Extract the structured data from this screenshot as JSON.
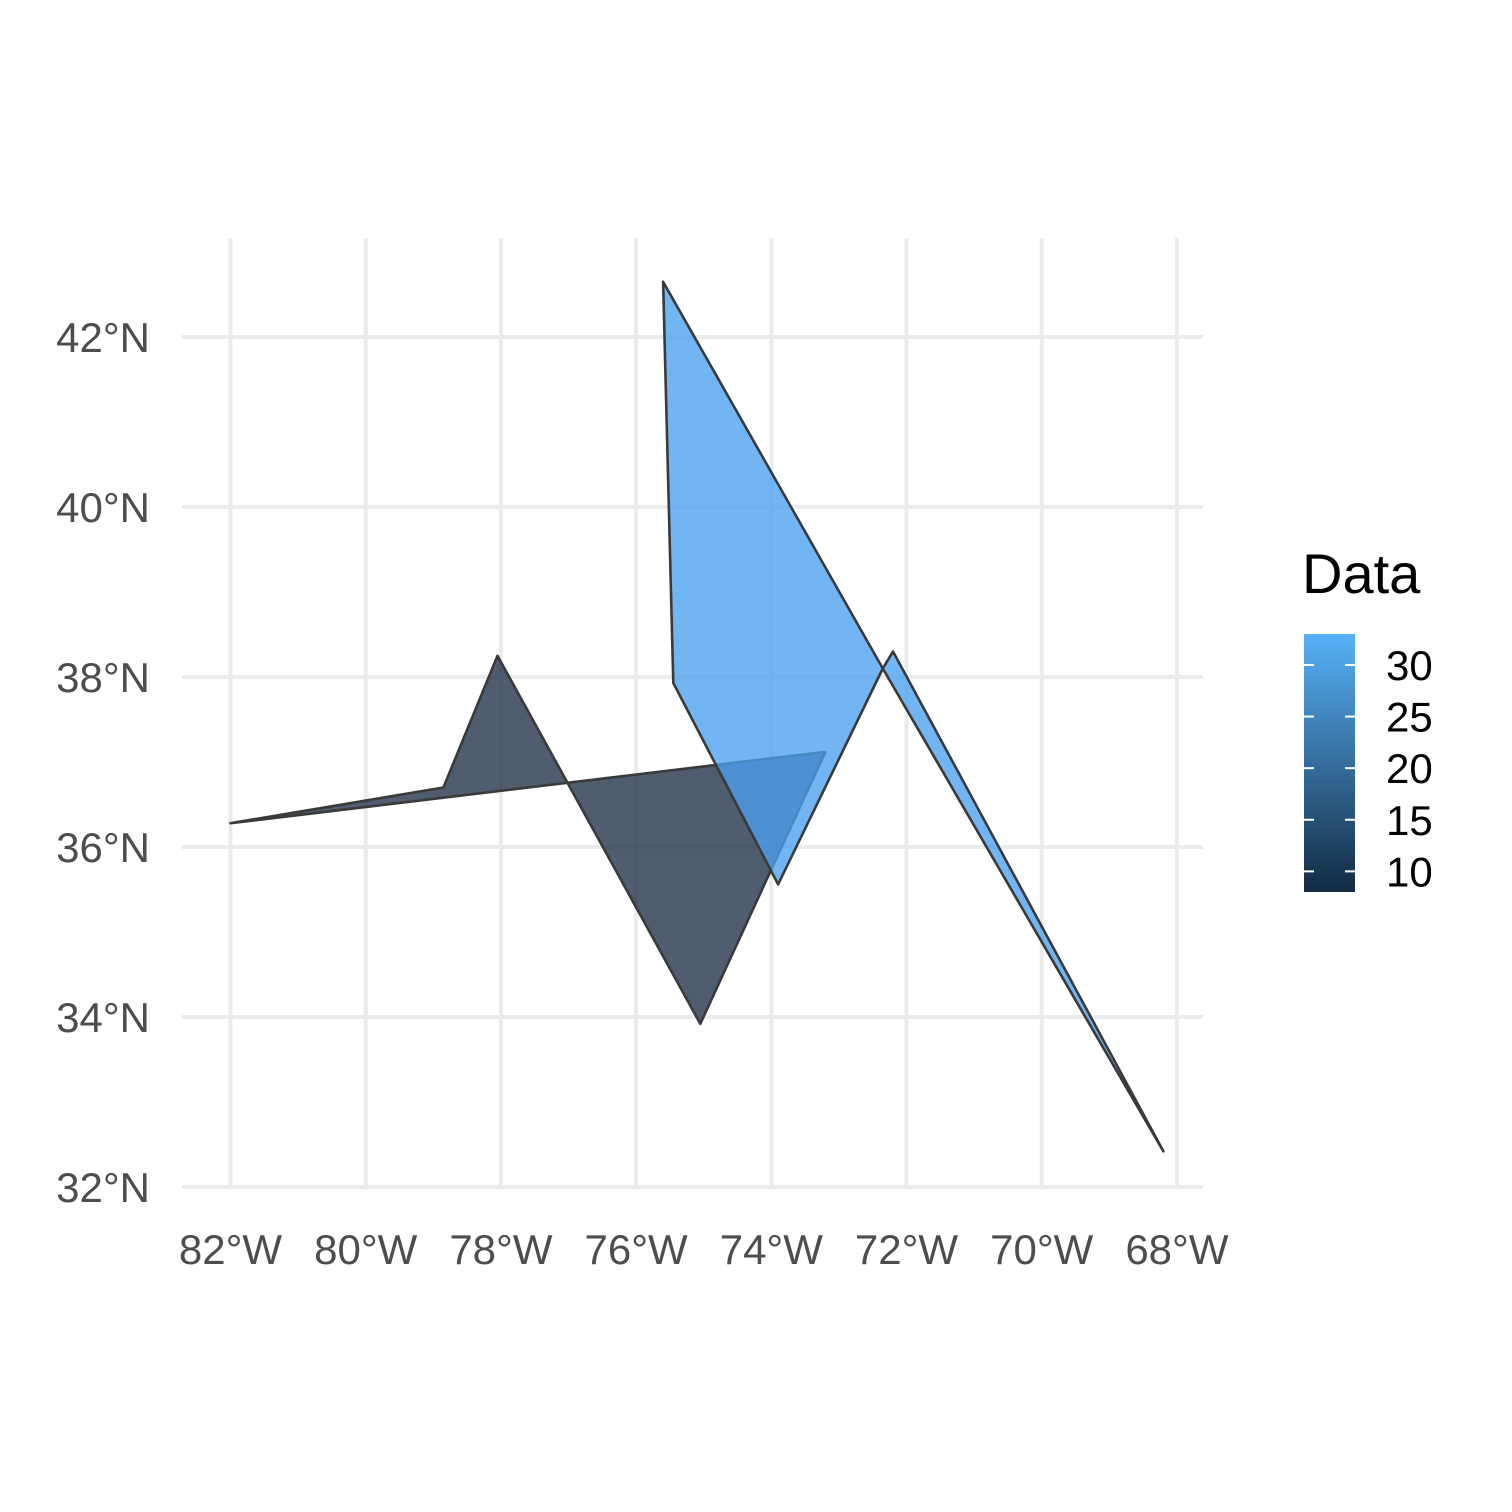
{
  "chart_data": {
    "type": "map-polygons",
    "x_axis": {
      "range": [
        -82.3,
        -67.6
      ],
      "ticks": [
        {
          "value": -82,
          "label": "82°W"
        },
        {
          "value": -80,
          "label": "80°W"
        },
        {
          "value": -78,
          "label": "78°W"
        },
        {
          "value": -76,
          "label": "76°W"
        },
        {
          "value": -74,
          "label": "74°W"
        },
        {
          "value": -72,
          "label": "72°W"
        },
        {
          "value": -70,
          "label": "70°W"
        },
        {
          "value": -68,
          "label": "68°W"
        }
      ]
    },
    "y_axis": {
      "range": [
        32,
        43.0
      ],
      "ticks": [
        {
          "value": 32,
          "label": "32°N"
        },
        {
          "value": 34,
          "label": "34°N"
        },
        {
          "value": 36,
          "label": "36°N"
        },
        {
          "value": 38,
          "label": "38°N"
        },
        {
          "value": 40,
          "label": "40°N"
        },
        {
          "value": 42,
          "label": "42°N"
        }
      ]
    },
    "grid": true,
    "polygons": [
      {
        "value": 8,
        "fill": "#1f2e48",
        "coords": [
          [
            -82,
            36.28
          ],
          [
            -78.85,
            36.7
          ],
          [
            -78.05,
            38.25
          ],
          [
            -75.05,
            33.92
          ],
          [
            -73.2,
            37.12
          ]
        ]
      },
      {
        "value": 33,
        "fill": "#4aa0f0",
        "coords": [
          [
            -75.6,
            42.65
          ],
          [
            -75.45,
            37.93
          ],
          [
            -73.9,
            35.56
          ],
          [
            -72.35,
            38.1
          ],
          [
            -72.2,
            38.3
          ],
          [
            -68.2,
            32.42
          ],
          [
            -72.35,
            38.1
          ]
        ]
      }
    ],
    "legend": {
      "title": "Data",
      "placement": "right",
      "range": [
        8,
        33
      ],
      "low_color": "#132b43",
      "high_color": "#56b1f7",
      "ticks": [
        {
          "value": 10,
          "label": "10"
        },
        {
          "value": 15,
          "label": "15"
        },
        {
          "value": 20,
          "label": "20"
        },
        {
          "value": 25,
          "label": "25"
        },
        {
          "value": 30,
          "label": "30"
        }
      ]
    }
  }
}
